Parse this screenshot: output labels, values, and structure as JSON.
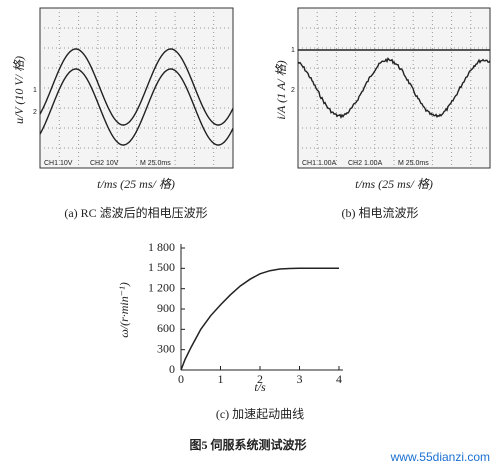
{
  "panels": [
    {
      "y_label": "u/V (10 V/ 格)",
      "x_label": "t/ms (25 ms/ 格)",
      "scope_labels": [
        "CH1  10V",
        "CH2  10V",
        "M 25.0ms"
      ],
      "channel_marks": [
        "1",
        "2"
      ],
      "caption": "(a) RC 滤波后的相电压波形"
    },
    {
      "y_label": "i/A (1 A/ 格)",
      "x_label": "t/ms (25 ms/ 格)",
      "scope_labels": [
        "CH1  1.00A",
        "CH2  1.00A",
        "M 25.0ms"
      ],
      "channel_marks": [
        "1",
        "2"
      ],
      "caption": "(b) 相电流波形"
    }
  ],
  "chart_data": {
    "type": "line",
    "x_label": "t/s",
    "y_label": "ω/(r·min⁻¹)",
    "caption": "(c) 加速起动曲线",
    "series": [
      {
        "name": "ω",
        "color": "#222222",
        "x": [
          0,
          0.1,
          0.25,
          0.5,
          0.75,
          1,
          1.25,
          1.5,
          1.75,
          2,
          2.25,
          2.5,
          2.75,
          3,
          3.5,
          4
        ],
        "values": [
          0,
          150,
          330,
          600,
          800,
          960,
          1110,
          1240,
          1340,
          1420,
          1465,
          1490,
          1498,
          1500,
          1500,
          1500
        ]
      }
    ],
    "xlim": [
      0,
      4
    ],
    "xticks": [
      0,
      1,
      2,
      3,
      4
    ],
    "ylim": [
      0,
      1800
    ],
    "yticks": [
      0,
      300,
      600,
      900,
      {
        "value": 1200,
        "label": "1 200"
      },
      {
        "value": 1500,
        "label": "1 500"
      },
      {
        "value": 1800,
        "label": "1 800"
      }
    ]
  },
  "figure_caption": "图5  伺服系统测试波形",
  "watermark": "www.55dianzi.com"
}
